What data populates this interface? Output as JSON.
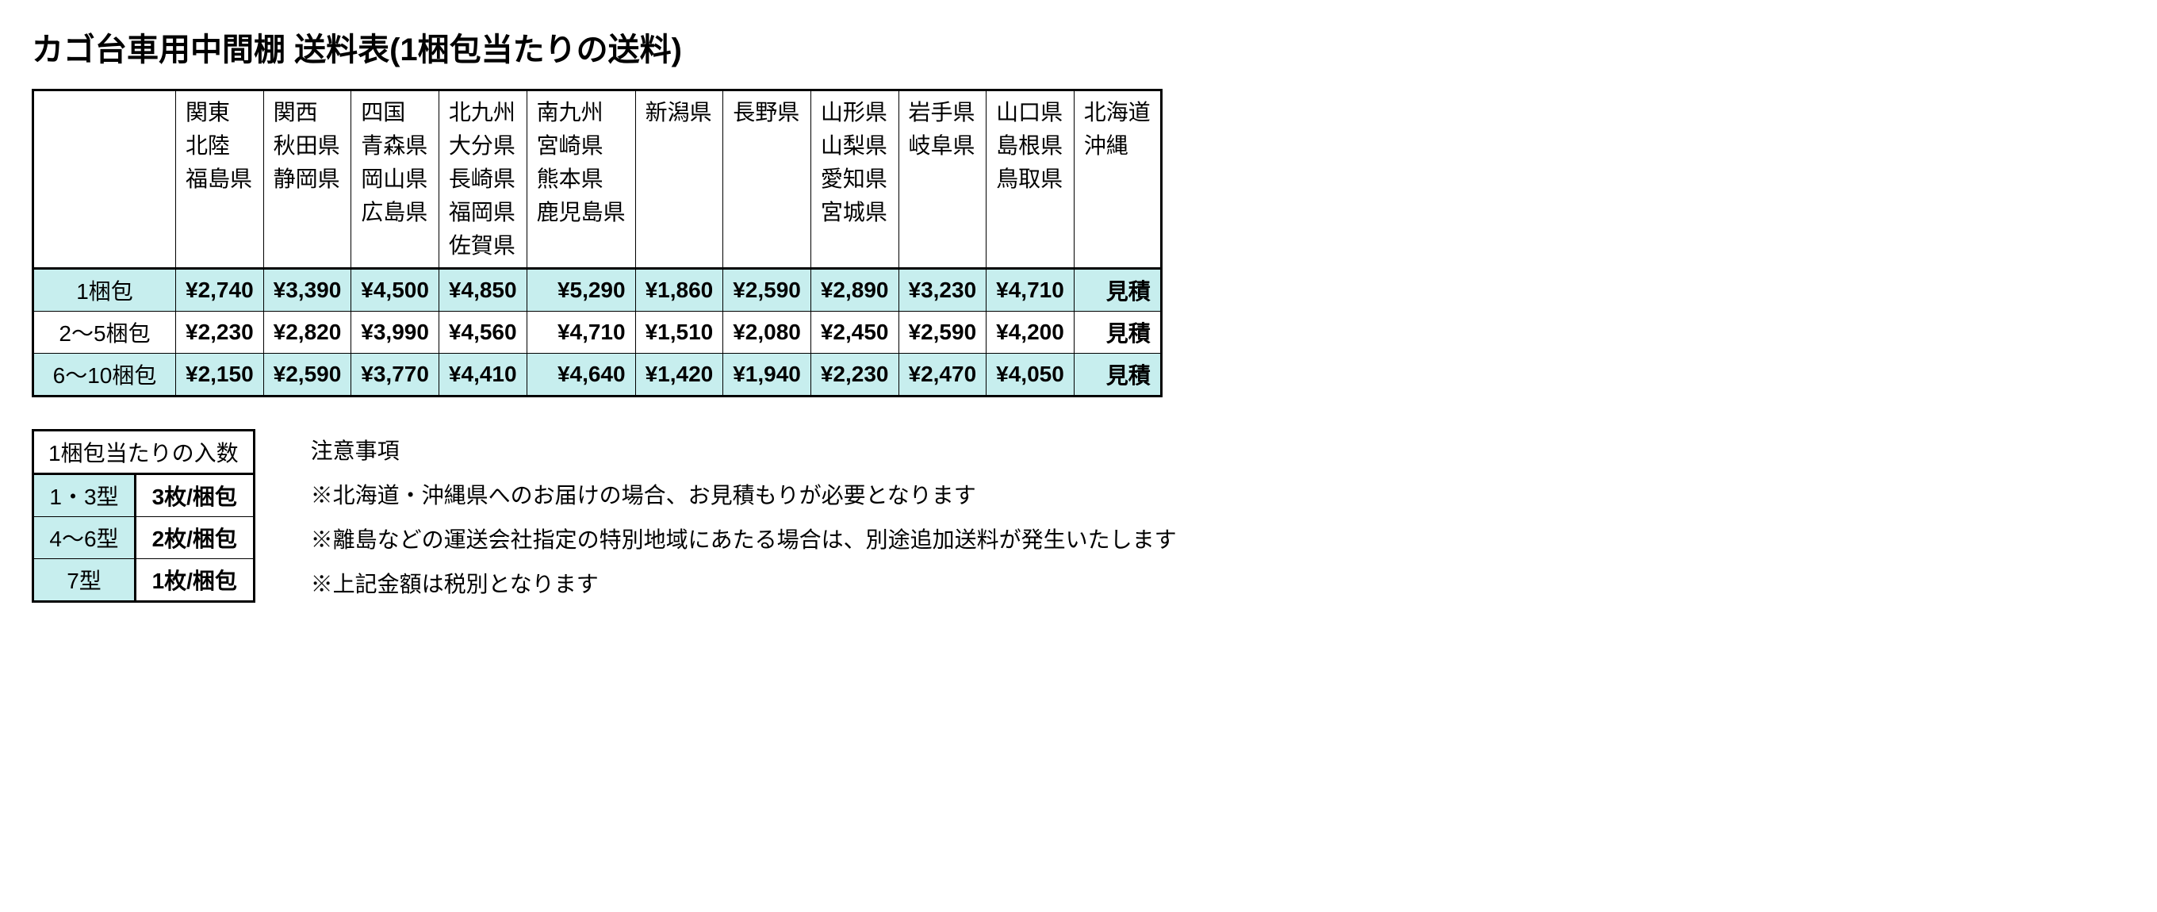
{
  "title": "カゴ台車用中間棚 送料表(1梱包当たりの送料)",
  "colors": {
    "shade": "#c7eeee",
    "border": "#000000",
    "background": "#ffffff",
    "text": "#000000"
  },
  "shipping_table": {
    "type": "table",
    "header_fontsize": 28,
    "body_fontsize": 28,
    "regions": [
      [
        "関東",
        "北陸",
        "福島県"
      ],
      [
        "関西",
        "秋田県",
        "静岡県"
      ],
      [
        "四国",
        "青森県",
        "岡山県",
        "広島県"
      ],
      [
        "北九州",
        "大分県",
        "長崎県",
        "福岡県",
        "佐賀県"
      ],
      [
        "南九州",
        "宮崎県",
        "熊本県",
        "鹿児島県"
      ],
      [
        "新潟県"
      ],
      [
        "長野県"
      ],
      [
        "山形県",
        "山梨県",
        "愛知県",
        "宮城県"
      ],
      [
        "岩手県",
        "岐阜県"
      ],
      [
        "山口県",
        "島根県",
        "鳥取県"
      ],
      [
        "北海道",
        "沖縄"
      ]
    ],
    "rows": [
      {
        "label": "1梱包",
        "shade": true,
        "cells": [
          "¥2,740",
          "¥3,390",
          "¥4,500",
          "¥4,850",
          "¥5,290",
          "¥1,860",
          "¥2,590",
          "¥2,890",
          "¥3,230",
          "¥4,710",
          "見積"
        ]
      },
      {
        "label": "2～5梱包",
        "shade": false,
        "cells": [
          "¥2,230",
          "¥2,820",
          "¥3,990",
          "¥4,560",
          "¥4,710",
          "¥1,510",
          "¥2,080",
          "¥2,450",
          "¥2,590",
          "¥4,200",
          "見積"
        ]
      },
      {
        "label": "6～10梱包",
        "shade": true,
        "cells": [
          "¥2,150",
          "¥2,590",
          "¥3,770",
          "¥4,410",
          "¥4,640",
          "¥1,420",
          "¥1,940",
          "¥2,230",
          "¥2,470",
          "¥4,050",
          "見積"
        ]
      }
    ]
  },
  "pack_table": {
    "caption": "1梱包当たりの入数",
    "rows": [
      {
        "label": "1・3型",
        "value": "3枚/梱包"
      },
      {
        "label": "4～6型",
        "value": "2枚/梱包"
      },
      {
        "label": "7型",
        "value": "1枚/梱包"
      }
    ]
  },
  "notes": {
    "heading": "注意事項",
    "items": [
      "※北海道・沖縄県へのお届けの場合、お見積もりが必要となります",
      "※離島などの運送会社指定の特別地域にあたる場合は、別途追加送料が発生いたします",
      "※上記金額は税別となります"
    ]
  }
}
